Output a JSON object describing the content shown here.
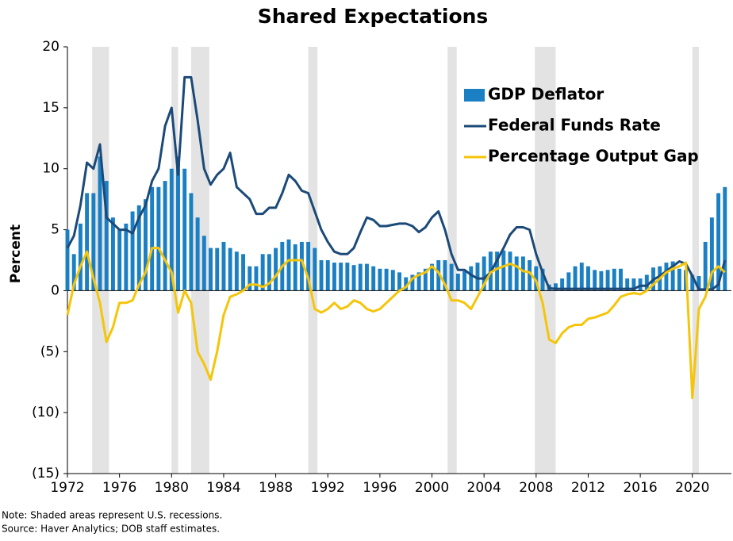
{
  "chart_data": {
    "type": "bar-line",
    "title": "Shared Expectations",
    "ylabel": "Percent",
    "notes": [
      "Note:  Shaded areas represent U.S. recessions.",
      "Source:  Haver Analytics; DOB staff estimates."
    ],
    "xlim": [
      1972,
      2023
    ],
    "xticks": [
      1972,
      1976,
      1980,
      1984,
      1988,
      1992,
      1996,
      2000,
      2004,
      2008,
      2012,
      2016,
      2020
    ],
    "ylim": [
      -15,
      20
    ],
    "yticks": [
      {
        "value": -15,
        "label": "(15)"
      },
      {
        "value": -10,
        "label": "(10)"
      },
      {
        "value": -5,
        "label": "(5)"
      },
      0,
      5,
      10,
      15,
      20
    ],
    "recessions": [
      [
        1973.9,
        1975.2
      ],
      [
        1980.0,
        1980.5
      ],
      [
        1981.5,
        1982.9
      ],
      [
        1990.5,
        1991.2
      ],
      [
        2001.2,
        2001.9
      ],
      [
        2007.9,
        2009.5
      ],
      [
        2020.0,
        2020.5
      ]
    ],
    "recession_color": "#e3e3e3",
    "legend": "upper right",
    "x": [
      1972,
      1972.5,
      1973,
      1973.5,
      1974,
      1974.5,
      1975,
      1975.5,
      1976,
      1976.5,
      1977,
      1977.5,
      1978,
      1978.5,
      1979,
      1979.5,
      1980,
      1980.5,
      1981,
      1981.5,
      1982,
      1982.5,
      1983,
      1983.5,
      1984,
      1984.5,
      1985,
      1985.5,
      1986,
      1986.5,
      1987,
      1987.5,
      1988,
      1988.5,
      1989,
      1989.5,
      1990,
      1990.5,
      1991,
      1991.5,
      1992,
      1992.5,
      1993,
      1993.5,
      1994,
      1994.5,
      1995,
      1995.5,
      1996,
      1996.5,
      1997,
      1997.5,
      1998,
      1998.5,
      1999,
      1999.5,
      2000,
      2000.5,
      2001,
      2001.5,
      2002,
      2002.5,
      2003,
      2003.5,
      2004,
      2004.5,
      2005,
      2005.5,
      2006,
      2006.5,
      2007,
      2007.5,
      2008,
      2008.5,
      2009,
      2009.5,
      2010,
      2010.5,
      2011,
      2011.5,
      2012,
      2012.5,
      2013,
      2013.5,
      2014,
      2014.5,
      2015,
      2015.5,
      2016,
      2016.5,
      2017,
      2017.5,
      2018,
      2018.5,
      2019,
      2019.5,
      2020,
      2020.5,
      2021,
      2021.5,
      2022,
      2022.5
    ],
    "series": [
      {
        "name": "GDP Deflator",
        "kind": "bar",
        "color": "#1b7fc4",
        "values": [
          5,
          3,
          5.5,
          8,
          8,
          11,
          9,
          6,
          5,
          5.5,
          6.5,
          7,
          7.5,
          8.5,
          8.5,
          9,
          10,
          11,
          10,
          8,
          6,
          4.5,
          3.5,
          3.5,
          4,
          3.5,
          3.2,
          3,
          2,
          2,
          3,
          3,
          3.5,
          4,
          4.2,
          3.8,
          4,
          4,
          3.5,
          2.5,
          2.5,
          2.3,
          2.3,
          2.3,
          2.1,
          2.2,
          2.2,
          2,
          1.8,
          1.8,
          1.7,
          1.5,
          1.1,
          1.3,
          1.5,
          1.8,
          2.2,
          2.5,
          2.5,
          2.2,
          1.4,
          1.6,
          2,
          2.3,
          2.8,
          3.2,
          3.2,
          3.3,
          3.2,
          2.8,
          2.8,
          2.5,
          2,
          1.8,
          0.5,
          0.6,
          1,
          1.5,
          2,
          2.3,
          2,
          1.7,
          1.6,
          1.7,
          1.8,
          1.8,
          1,
          1,
          1,
          1.3,
          1.9,
          2,
          2.3,
          2.4,
          1.8,
          1.7,
          1.3,
          1.2,
          4,
          6,
          8,
          8.5
        ]
      },
      {
        "name": "Federal Funds Rate",
        "kind": "line",
        "color": "#1c4a78",
        "values": [
          3.5,
          4.5,
          7,
          10.5,
          10,
          12,
          6,
          5.5,
          5,
          5,
          4.7,
          6,
          7,
          9,
          10,
          13.5,
          15,
          9.5,
          17.5,
          17.5,
          14,
          10,
          8.7,
          9.5,
          10,
          11.3,
          8.5,
          8,
          7.5,
          6.3,
          6.3,
          6.8,
          6.8,
          8,
          9.5,
          9,
          8.2,
          8,
          6.5,
          5,
          4,
          3.2,
          3,
          3,
          3.5,
          4.8,
          6,
          5.8,
          5.3,
          5.3,
          5.4,
          5.5,
          5.5,
          5.3,
          4.8,
          5.2,
          6,
          6.5,
          5,
          3,
          1.7,
          1.7,
          1.3,
          1,
          1,
          1.5,
          2.5,
          3.5,
          4.6,
          5.2,
          5.2,
          5,
          3,
          1.5,
          0.2,
          0.15,
          0.15,
          0.15,
          0.15,
          0.15,
          0.15,
          0.15,
          0.15,
          0.15,
          0.15,
          0.15,
          0.15,
          0.15,
          0.4,
          0.4,
          0.9,
          1.2,
          1.6,
          2,
          2.4,
          2.2,
          1.2,
          0.1,
          0.1,
          0.1,
          0.5,
          2.5
        ]
      },
      {
        "name": "Percentage Output Gap",
        "kind": "line",
        "color": "#f5c50a",
        "values": [
          -2,
          0.5,
          2,
          3.2,
          1,
          -1,
          -4.2,
          -3,
          -1,
          -1,
          -0.8,
          0.5,
          1.5,
          3.5,
          3.5,
          2.5,
          1.5,
          -1.8,
          0,
          -1,
          -5,
          -6,
          -7.3,
          -5,
          -2,
          -0.5,
          -0.3,
          0,
          0.5,
          0.5,
          0.3,
          0.6,
          1.2,
          2,
          2.5,
          2.5,
          2.5,
          1,
          -1.5,
          -1.8,
          -1.5,
          -1,
          -1.5,
          -1.3,
          -0.8,
          -1,
          -1.5,
          -1.7,
          -1.5,
          -1,
          -0.5,
          0,
          0.3,
          1,
          1.3,
          1.5,
          2,
          1.5,
          0.5,
          -0.8,
          -0.8,
          -1,
          -1.5,
          -0.5,
          0.5,
          1.5,
          1.8,
          2,
          2.2,
          2,
          1.6,
          1.5,
          0.8,
          -1,
          -4,
          -4.3,
          -3.5,
          -3,
          -2.8,
          -2.8,
          -2.3,
          -2.2,
          -2,
          -1.8,
          -1.2,
          -0.5,
          -0.3,
          -0.2,
          -0.3,
          0,
          0.5,
          1,
          1.5,
          1.8,
          2,
          2.3,
          -8.8,
          -1.5,
          -0.5,
          1.5,
          2,
          1.5
        ]
      }
    ]
  }
}
